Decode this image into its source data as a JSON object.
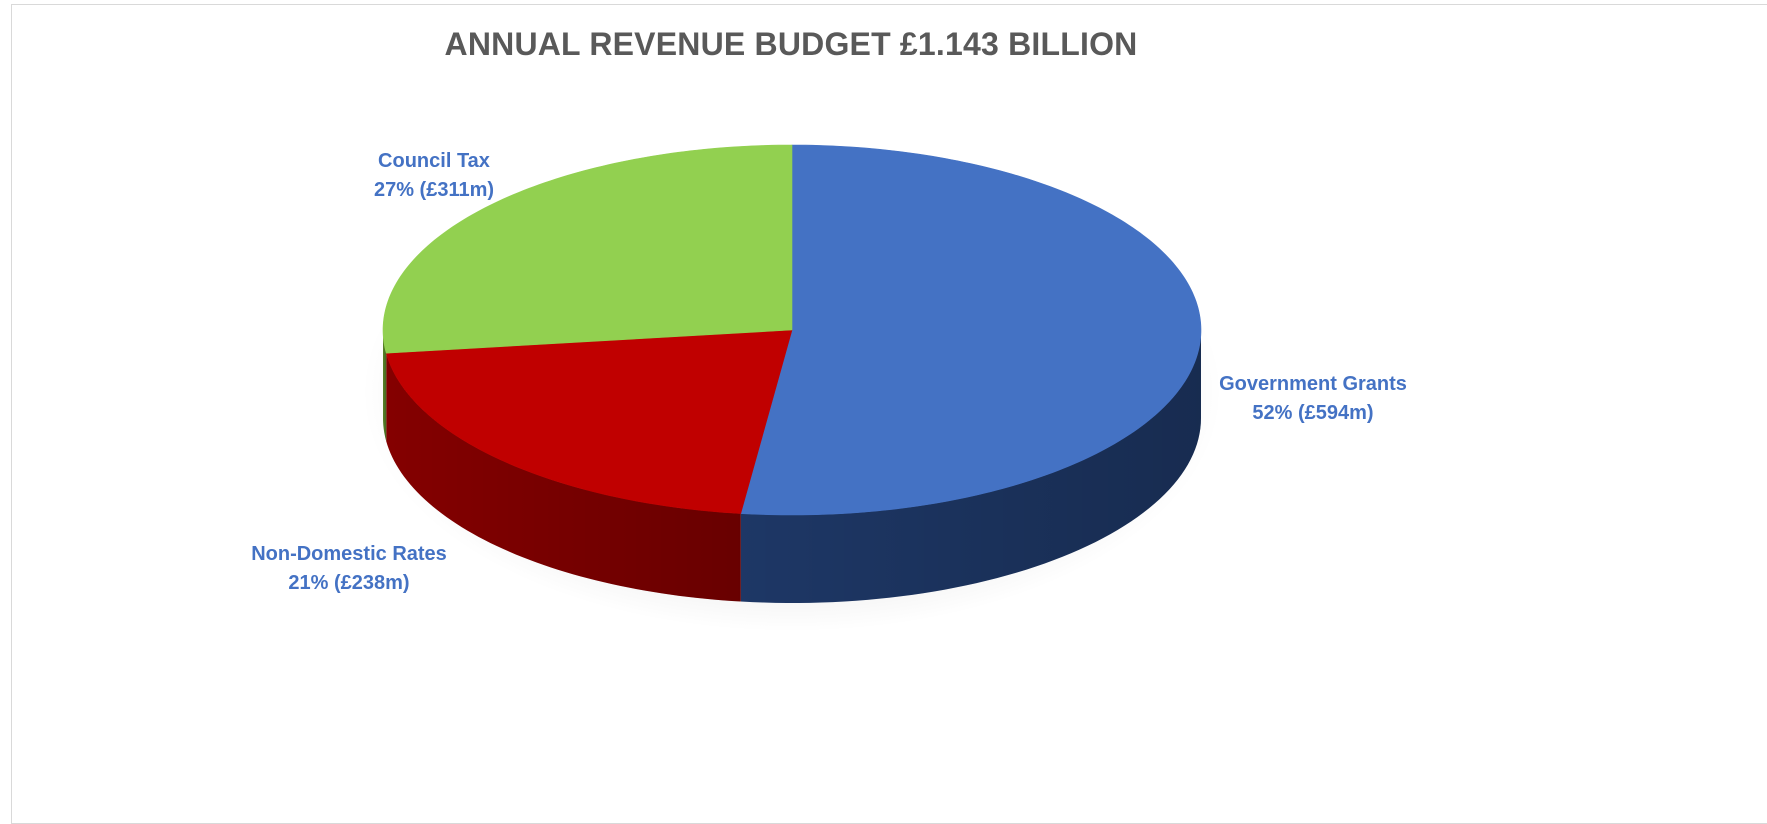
{
  "chart_data": {
    "type": "pie",
    "title": "ANNUAL REVENUE BUDGET £1.143 BILLION",
    "slices": [
      {
        "label": "Government Grants",
        "percent": 52,
        "value": 594,
        "value_text": "52% (£594m)",
        "color": "#4472c4",
        "side_color": "#1f3a6b"
      },
      {
        "label": "Non-Domestic Rates",
        "percent": 21,
        "value": 238,
        "value_text": "21% (£238m)",
        "color": "#c00000",
        "side_color": "#8b0000"
      },
      {
        "label": "Council Tax",
        "percent": 27,
        "value": 311,
        "value_text": "27% (£311m)",
        "color": "#92d050",
        "side_color": "#5d8a2a"
      }
    ],
    "unit": "£m",
    "label_color": "#4472c4",
    "style": "3d"
  }
}
